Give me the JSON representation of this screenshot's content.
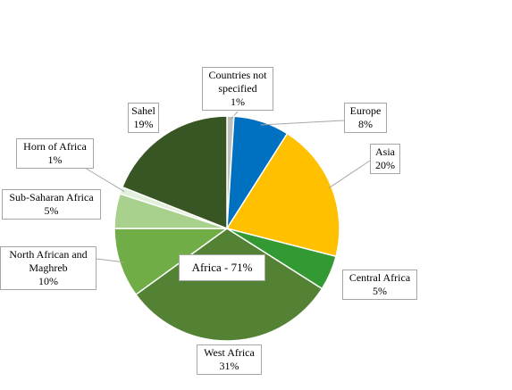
{
  "chart_data": {
    "type": "pie",
    "categories": [
      "Countries not specified",
      "Europe",
      "Asia",
      "Central Africa",
      "West Africa",
      "North African and Maghreb",
      "Sub-Saharan Africa",
      "Horn of Africa",
      "Sahel"
    ],
    "values": [
      1,
      8,
      20,
      5,
      31,
      10,
      5,
      1,
      19
    ],
    "value_labels": [
      "1%",
      "8%",
      "20%",
      "5%",
      "31%",
      "10%",
      "5%",
      "1%",
      "19%"
    ],
    "colors": [
      "#bfbfbf",
      "#0070c0",
      "#ffc000",
      "#339933",
      "#548235",
      "#70ad47",
      "#a9d18e",
      "#e2efda",
      "#375623"
    ],
    "annotation": "Africa - 71%"
  }
}
